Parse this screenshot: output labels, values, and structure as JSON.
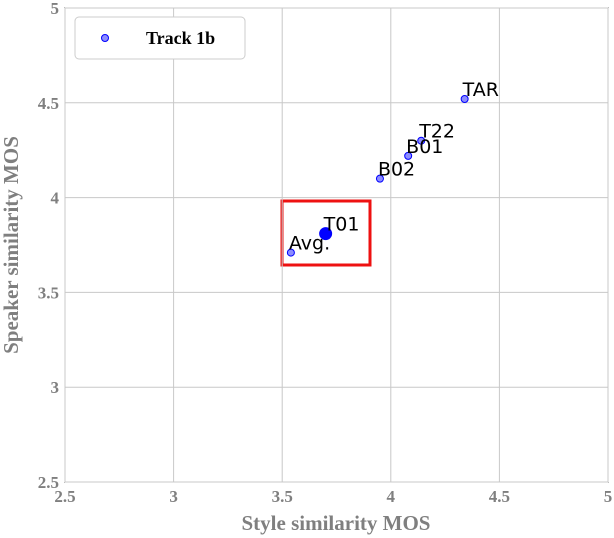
{
  "chart_data": {
    "type": "scatter",
    "xlabel": "Style similarity MOS",
    "ylabel": "Speaker similarity MOS",
    "xlim": [
      2.5,
      5
    ],
    "ylim": [
      2.5,
      5
    ],
    "xticks": [
      2.5,
      3,
      3.5,
      4,
      4.5,
      5
    ],
    "yticks": [
      2.5,
      3,
      3.5,
      4,
      4.5,
      5
    ],
    "grid": true,
    "legend": "upper left",
    "series": [
      {
        "name": "Track 1b",
        "color": "#0000ff",
        "x": [
          4.34,
          4.14,
          4.08,
          3.95,
          3.7,
          3.54
        ],
        "values": [
          4.52,
          4.3,
          4.22,
          4.1,
          3.81,
          3.71
        ],
        "labels": [
          "TAR",
          "T22",
          "B01",
          "B02",
          "T01",
          "Avg."
        ]
      }
    ],
    "highlight": "T01"
  }
}
